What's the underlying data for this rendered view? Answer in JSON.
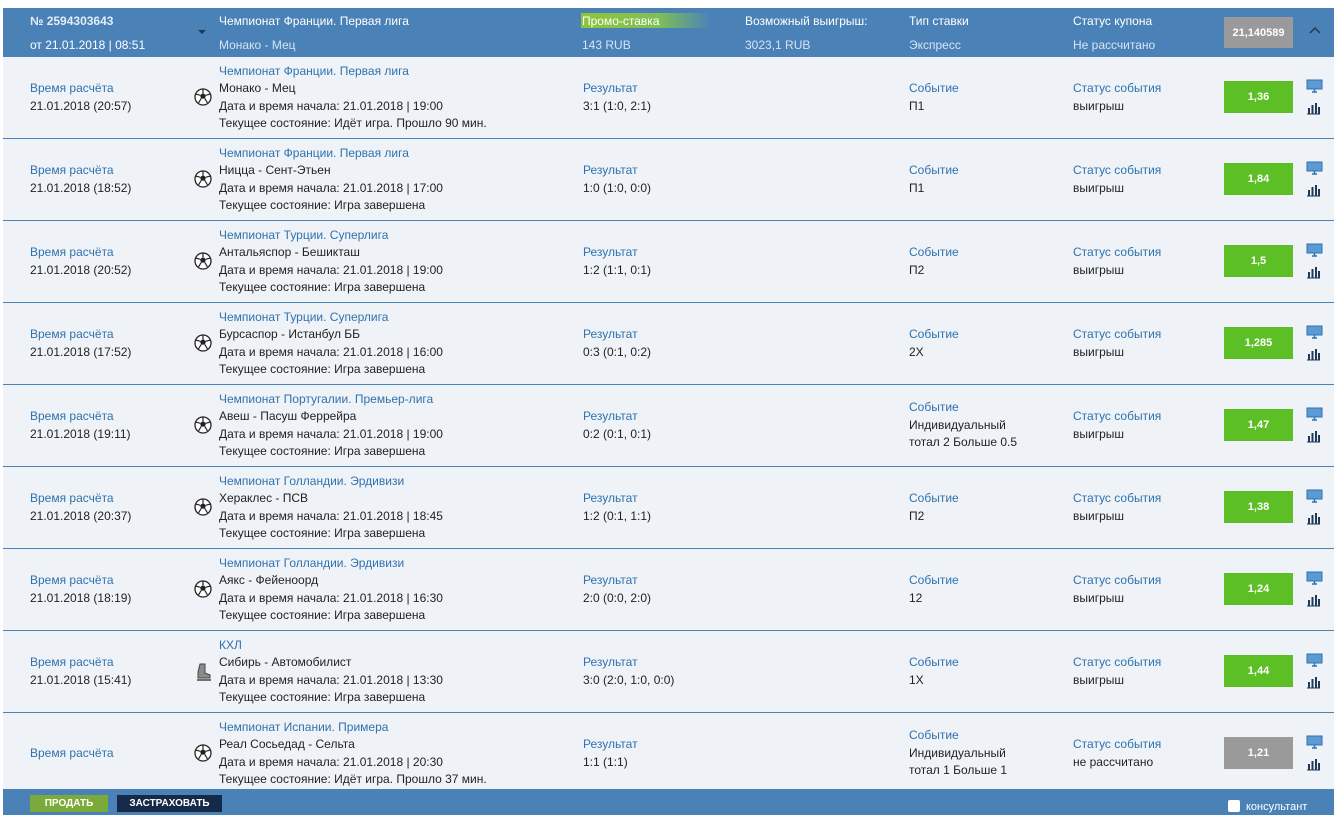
{
  "header": {
    "number": "№ 2594303643",
    "date": "от 21.01.2018 | 08:51",
    "league": "Чемпионат Франции. Первая лига",
    "match": "Монако - Мец",
    "promo_label": "Промо-ставка",
    "promo_value": "143 RUB",
    "win_label": "Возможный выигрыш:",
    "win_value": "3023,1 RUB",
    "type_label": "Тип ставки",
    "type_value": "Экспресс",
    "status_label": "Статус купона",
    "status_value": "Не рассчитано",
    "coefficient": "21,140589"
  },
  "rows": [
    {
      "calc_label": "Время расчёта",
      "calc_time": "21.01.2018 (20:57)",
      "icon": "football",
      "league": "Чемпионат Франции. Первая лига",
      "match": "Монако - Мец",
      "start": "Дата и время начала: 21.01.2018 | 19:00",
      "state": "Текущее состояние: Идёт игра. Прошло 90 мин.",
      "result_label": "Результат",
      "result": "3:1 (1:0, 2:1)",
      "event_label": "Событие",
      "event": "П1",
      "status_label": "Статус события",
      "status": "выигрыш",
      "odds": "1,36",
      "odds_color": "#5cbf25"
    },
    {
      "calc_label": "Время расчёта",
      "calc_time": "21.01.2018 (18:52)",
      "icon": "football",
      "league": "Чемпионат Франции. Первая лига",
      "match": "Ницца - Сент-Этьен",
      "start": "Дата и время начала: 21.01.2018 | 17:00",
      "state": "Текущее состояние: Игра завершена",
      "result_label": "Результат",
      "result": "1:0 (1:0, 0:0)",
      "event_label": "Событие",
      "event": "П1",
      "status_label": "Статус события",
      "status": "выигрыш",
      "odds": "1,84",
      "odds_color": "#5cbf25"
    },
    {
      "calc_label": "Время расчёта",
      "calc_time": "21.01.2018 (20:52)",
      "icon": "football",
      "league": "Чемпионат Турции. Суперлига",
      "match": "Антальяспор - Бешикташ",
      "start": "Дата и время начала: 21.01.2018 | 19:00",
      "state": "Текущее состояние: Игра завершена",
      "result_label": "Результат",
      "result": "1:2 (1:1, 0:1)",
      "event_label": "Событие",
      "event": "П2",
      "status_label": "Статус события",
      "status": "выигрыш",
      "odds": "1,5",
      "odds_color": "#5cbf25"
    },
    {
      "calc_label": "Время расчёта",
      "calc_time": "21.01.2018 (17:52)",
      "icon": "football",
      "league": "Чемпионат Турции. Суперлига",
      "match": "Бурсаспор - Истанбул ББ",
      "start": "Дата и время начала: 21.01.2018 | 16:00",
      "state": "Текущее состояние: Игра завершена",
      "result_label": "Результат",
      "result": "0:3 (0:1, 0:2)",
      "event_label": "Событие",
      "event": "2X",
      "status_label": "Статус события",
      "status": "выигрыш",
      "odds": "1,285",
      "odds_color": "#5cbf25"
    },
    {
      "calc_label": "Время расчёта",
      "calc_time": "21.01.2018 (19:11)",
      "icon": "football",
      "league": "Чемпионат Португалии. Премьер-лига",
      "match": "Авеш - Пасуш Феррейра",
      "start": "Дата и время начала: 21.01.2018 | 19:00",
      "state": "Текущее состояние: Игра завершена",
      "result_label": "Результат",
      "result": "0:2 (0:1, 0:1)",
      "event_label": "Событие",
      "event": "Индивидуальный тотал 2 Больше 0.5",
      "status_label": "Статус события",
      "status": "выигрыш",
      "odds": "1,47",
      "odds_color": "#5cbf25"
    },
    {
      "calc_label": "Время расчёта",
      "calc_time": "21.01.2018 (20:37)",
      "icon": "football",
      "league": "Чемпионат Голландии. Эрдивизи",
      "match": "Хераклес - ПСВ",
      "start": "Дата и время начала: 21.01.2018 | 18:45",
      "state": "Текущее состояние: Игра завершена",
      "result_label": "Результат",
      "result": "1:2 (0:1, 1:1)",
      "event_label": "Событие",
      "event": "П2",
      "status_label": "Статус события",
      "status": "выигрыш",
      "odds": "1,38",
      "odds_color": "#5cbf25"
    },
    {
      "calc_label": "Время расчёта",
      "calc_time": "21.01.2018 (18:19)",
      "icon": "football",
      "league": "Чемпионат Голландии. Эрдивизи",
      "match": "Аякс - Фейеноорд",
      "start": "Дата и время начала: 21.01.2018 | 16:30",
      "state": "Текущее состояние: Игра завершена",
      "result_label": "Результат",
      "result": "2:0 (0:0, 2:0)",
      "event_label": "Событие",
      "event": "12",
      "status_label": "Статус события",
      "status": "выигрыш",
      "odds": "1,24",
      "odds_color": "#5cbf25"
    },
    {
      "calc_label": "Время расчёта",
      "calc_time": "21.01.2018 (15:41)",
      "icon": "hockey",
      "league": "КХЛ",
      "match": "Сибирь - Автомобилист",
      "start": "Дата и время начала: 21.01.2018 | 13:30",
      "state": "Текущее состояние: Игра завершена",
      "result_label": "Результат",
      "result": "3:0 (2:0, 1:0, 0:0)",
      "event_label": "Событие",
      "event": "1X",
      "status_label": "Статус события",
      "status": "выигрыш",
      "odds": "1,44",
      "odds_color": "#5cbf25"
    },
    {
      "calc_label": "Время расчёта",
      "icon": "football",
      "league": "Чемпионат Испании. Примера",
      "match": "Реал Сосьедад - Сельта",
      "start": "Дата и время начала: 21.01.2018 | 20:30",
      "state": "Текущее состояние: Идёт игра. Прошло 37 мин.",
      "result_label": "Результат",
      "result": "1:1 (1:1)",
      "event_label": "Событие",
      "event": "Индивидуальный тотал 1 Больше 1",
      "status_label": "Статус события",
      "status": "не рассчитано",
      "odds": "1,21",
      "odds_color": "#9a9a9a"
    }
  ],
  "footer": {
    "sell": "ПРОДАТЬ",
    "insure": "ЗАСТРАХОВАТЬ",
    "consultant": "консультант"
  }
}
